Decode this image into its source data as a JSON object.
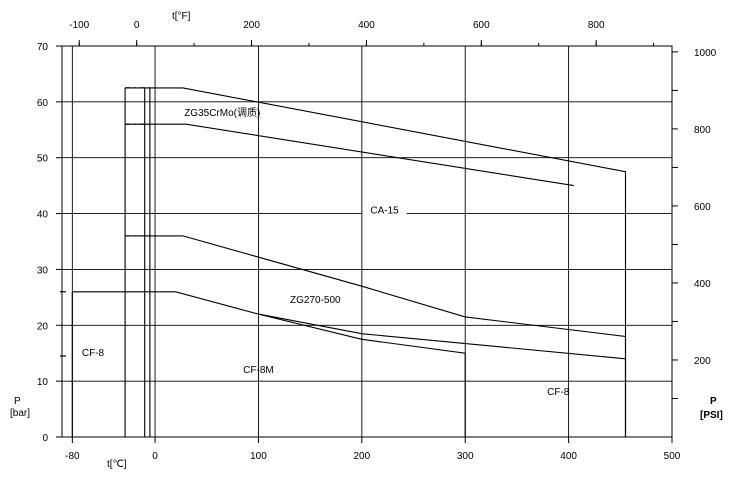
{
  "chart_data": {
    "type": "line",
    "xlabel": "t[℃]",
    "ylabel": "P",
    "ylabel_unit": "[bar]",
    "top_axis_label": "t[°F]",
    "right_axis_label": "P",
    "right_axis_unit": "[PSI]",
    "xlim": [
      -90,
      500
    ],
    "ylim": [
      0,
      70
    ],
    "x_ticks": [
      -80,
      0,
      100,
      200,
      300,
      400,
      500
    ],
    "y_ticks": [
      0,
      10,
      20,
      30,
      40,
      50,
      60,
      70
    ],
    "top_ticks": [
      -100,
      0,
      200,
      400,
      600,
      800
    ],
    "right_ticks": [
      200,
      400,
      600,
      800,
      1000
    ],
    "grid": true,
    "series": [
      {
        "name": "ZG35CrMo(调质)",
        "points": [
          [
            -29,
            62.5
          ],
          [
            27,
            62.5
          ],
          [
            455,
            47.5
          ],
          [
            455,
            0
          ]
        ]
      },
      {
        "name": "",
        "points": [
          [
            -29,
            56
          ],
          [
            30,
            56
          ],
          [
            405,
            45
          ]
        ]
      },
      {
        "name": "CA-15",
        "points": [
          [
            -29,
            36
          ],
          [
            27,
            36
          ],
          [
            200,
            27
          ],
          [
            300,
            21.5
          ],
          [
            455,
            18
          ],
          [
            455,
            0
          ]
        ]
      },
      {
        "name": "CF-8",
        "points": [
          [
            -80,
            26
          ],
          [
            20,
            26
          ],
          [
            100,
            22
          ],
          [
            200,
            18.5
          ],
          [
            455,
            14
          ],
          [
            455,
            0
          ]
        ]
      },
      {
        "name": "CF-8M",
        "points": [
          [
            100,
            22
          ],
          [
            200,
            17.5
          ],
          [
            300,
            15
          ],
          [
            300,
            0
          ]
        ]
      },
      {
        "name": "ZG270-500",
        "points": [
          [
            -29,
            62.5
          ],
          [
            -29,
            0
          ]
        ]
      },
      {
        "name": "",
        "points": [
          [
            -10,
            62.5
          ],
          [
            -10,
            0
          ]
        ]
      },
      {
        "name": "",
        "points": [
          [
            -80,
            26
          ],
          [
            -80,
            0
          ]
        ]
      },
      {
        "name": "",
        "points": [
          [
            -5,
            62.5
          ],
          [
            -5,
            0
          ]
        ]
      }
    ],
    "annotations": [
      {
        "text": "ZG35CrMo(调质)",
        "x": 65,
        "y": 57.5
      },
      {
        "text": "CA-15",
        "x": 222,
        "y": 40
      },
      {
        "text": "ZG270-500",
        "x": 155,
        "y": 24
      },
      {
        "text": "CF-8",
        "x": -60,
        "y": 14.5
      },
      {
        "text": "CF-8M",
        "x": 100,
        "y": 11.5
      },
      {
        "text": "CF-8",
        "x": 390,
        "y": 7.5
      }
    ]
  }
}
